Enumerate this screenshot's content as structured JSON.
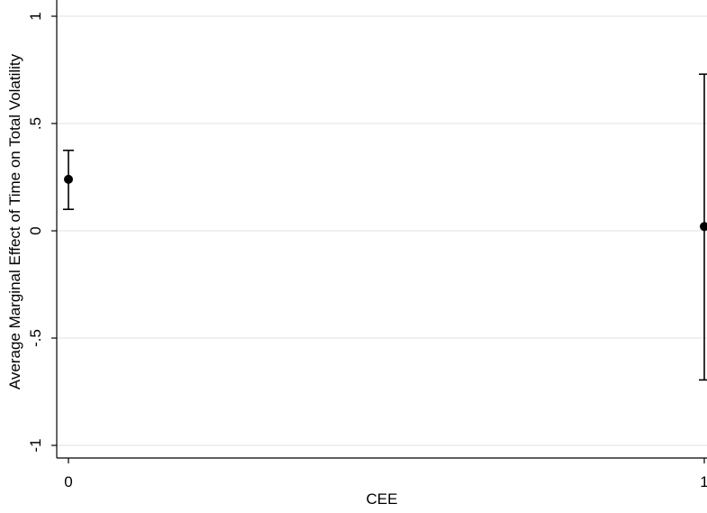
{
  "chart_data": {
    "type": "scatter",
    "subtype": "point-with-error-bars",
    "xlabel": "CEE",
    "ylabel": "Average Marginal Effect of Time on Total Volatility",
    "xticks": [
      {
        "value": 0,
        "label": "0"
      },
      {
        "value": 1,
        "label": "1"
      }
    ],
    "yticks": [
      {
        "value": -1,
        "label": "-1"
      },
      {
        "value": -0.5,
        "label": "-.5"
      },
      {
        "value": 0,
        "label": "0"
      },
      {
        "value": 0.5,
        "label": ".5"
      },
      {
        "value": 1,
        "label": "1"
      }
    ],
    "ylim": [
      -1,
      1
    ],
    "xlim": [
      0,
      1
    ],
    "grid": "horizontal",
    "points": [
      {
        "x": 0,
        "y": 0.24,
        "ci_low": 0.1,
        "ci_high": 0.375
      },
      {
        "x": 1,
        "y": 0.02,
        "ci_low": -0.695,
        "ci_high": 0.73
      }
    ],
    "colors": {
      "background": "#ffffff",
      "grid": "#e8ecee",
      "marker": "#000000",
      "axis": "#000000"
    }
  }
}
